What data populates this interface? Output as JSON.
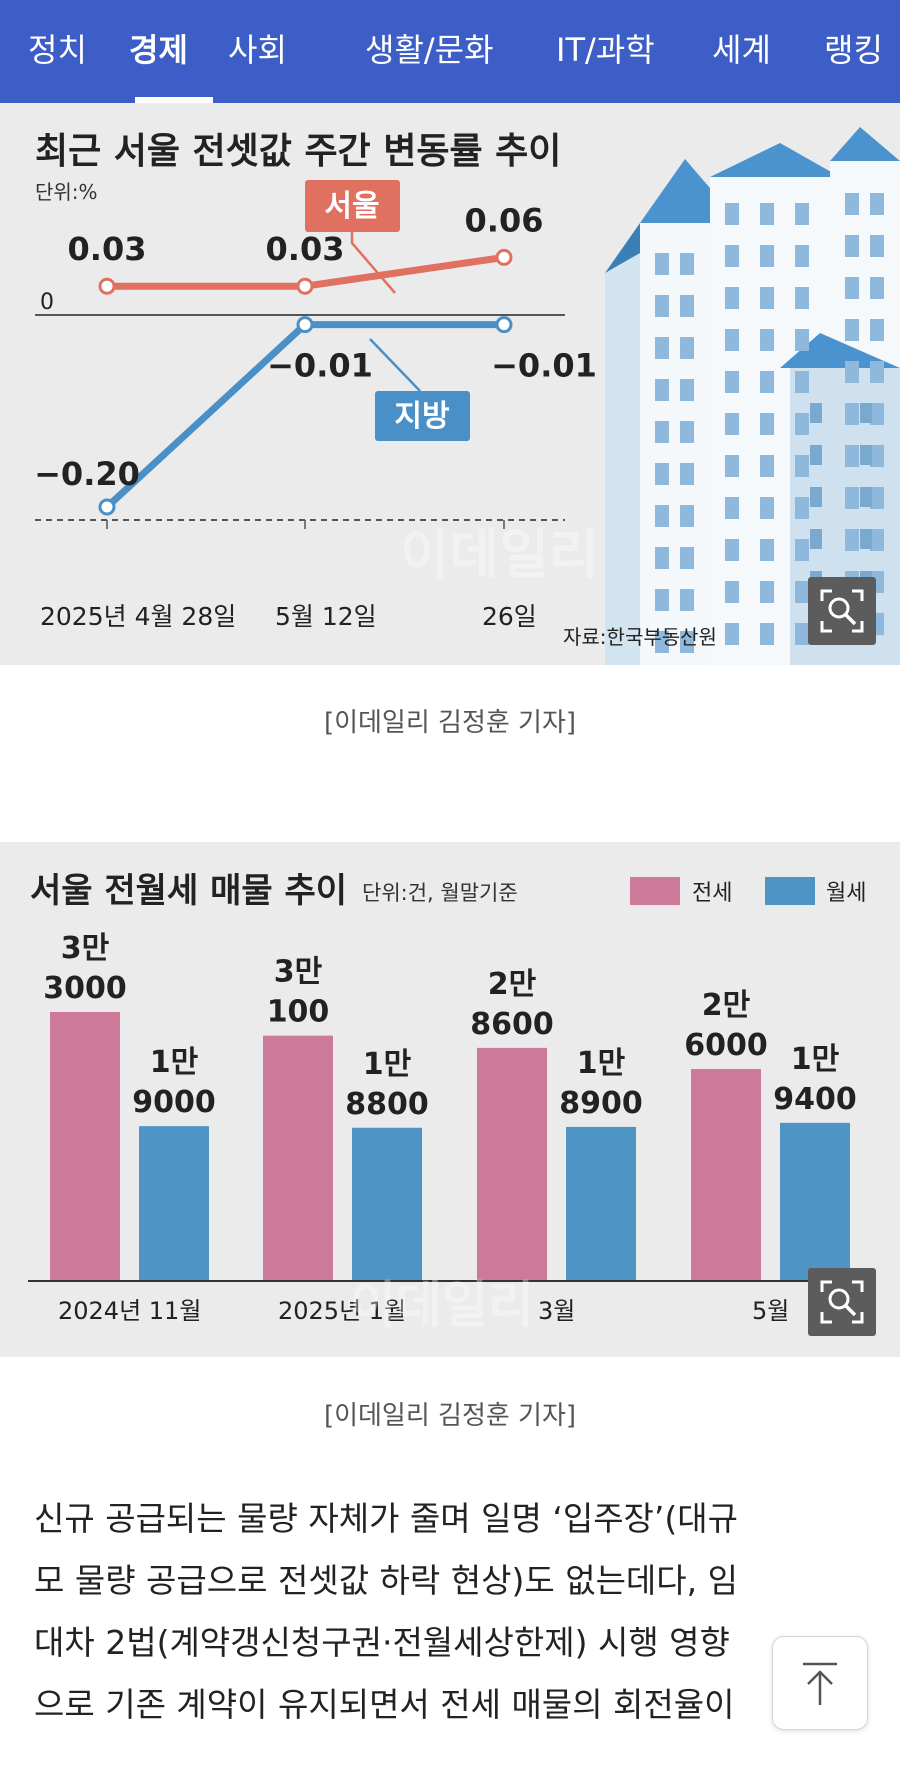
{
  "nav": {
    "tabs": [
      {
        "label": "정치"
      },
      {
        "label": "경제",
        "active": true
      },
      {
        "label": "사회"
      },
      {
        "label": "생활/문화"
      },
      {
        "label": "IT/과학"
      },
      {
        "label": "세계"
      },
      {
        "label": "랭킹"
      }
    ]
  },
  "figure1": {
    "watermark": "이데일리",
    "source": "자료:한국부동산원",
    "caption": "[이데일리 김정훈 기자]",
    "zoom_icon": "magnifier-icon"
  },
  "figure2": {
    "watermark": "이데일리",
    "caption": "[이데일리 김정훈 기자]",
    "zoom_icon": "magnifier-icon"
  },
  "chart_data": [
    {
      "type": "line",
      "title": "최근 서울 전셋값 주간 변동률 추이",
      "unit": "단위:%",
      "x": [
        "2025년 4월 28일",
        "5월 12일",
        "26일"
      ],
      "zero_label": "0",
      "series": [
        {
          "name": "서울",
          "values": [
            0.03,
            0.03,
            0.06
          ],
          "labels": [
            "0.03",
            "0.03",
            "0.06"
          ],
          "color": "#e0705f"
        },
        {
          "name": "지방",
          "values": [
            -0.2,
            -0.01,
            -0.01
          ],
          "labels": [
            "−0.20",
            "−0.01",
            "−0.01"
          ],
          "color": "#4a90c8"
        }
      ]
    },
    {
      "type": "bar",
      "title": "서울 전월세 매물 추이",
      "unit": "단위:건, 월말기준",
      "categories": [
        "2024년 11월",
        "2025년 1월",
        "3월",
        "5월"
      ],
      "series": [
        {
          "name": "전세",
          "values": [
            33000,
            30100,
            28600,
            26000
          ],
          "labels": [
            [
              "3만",
              "3000"
            ],
            [
              "3만",
              "100"
            ],
            [
              "2만",
              "8600"
            ],
            [
              "2만",
              "6000"
            ]
          ],
          "color": "#cd7a9a"
        },
        {
          "name": "월세",
          "values": [
            19000,
            18800,
            18900,
            19400
          ],
          "labels": [
            [
              "1만",
              "9000"
            ],
            [
              "1만",
              "8800"
            ],
            [
              "1만",
              "8900"
            ],
            [
              "1만",
              "9400"
            ]
          ],
          "color": "#4e95c6"
        }
      ]
    }
  ],
  "article": {
    "lines": [
      "신규 공급되는 물량 자체가 줄며 일명 ‘입주장’(대규",
      "모 물량 공급으로 전셋값 하락 현상)도 없는데다, 임",
      "대차 2법(계약갱신청구권·전월세상한제) 시행 영향",
      "으로 기존 계약이 유지되면서 전세 매물의 회전율이"
    ]
  },
  "scroll_top_icon": "arrow-up-icon"
}
